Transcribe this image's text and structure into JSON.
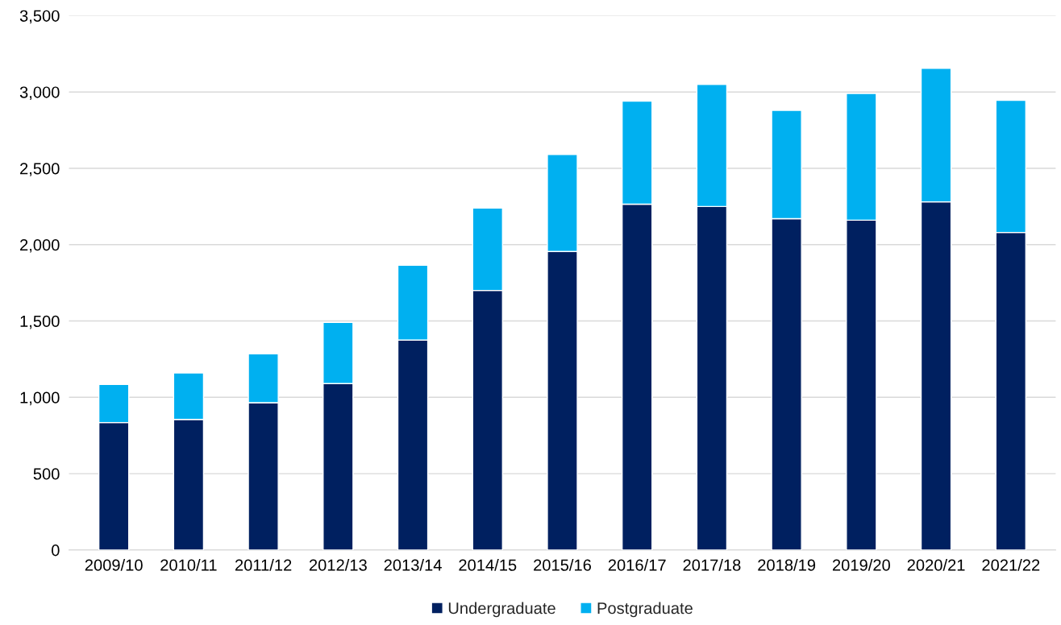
{
  "chart_data": {
    "type": "bar",
    "stacked": true,
    "categories": [
      "2009/10",
      "2010/11",
      "2011/12",
      "2012/13",
      "2013/14",
      "2014/15",
      "2015/16",
      "2016/17",
      "2017/18",
      "2018/19",
      "2019/20",
      "2020/21",
      "2021/22"
    ],
    "series": [
      {
        "name": "Undergraduate",
        "color": "#002060",
        "values": [
          835,
          855,
          965,
          1090,
          1375,
          1700,
          1955,
          2265,
          2250,
          2170,
          2160,
          2280,
          2080
        ]
      },
      {
        "name": "Postgraduate",
        "color": "#00b0f0",
        "values": [
          250,
          305,
          320,
          400,
          490,
          540,
          635,
          675,
          800,
          710,
          830,
          875,
          865
        ]
      }
    ],
    "ylim": [
      0,
      3500
    ],
    "yticks": [
      {
        "value": 0,
        "label": "0"
      },
      {
        "value": 500,
        "label": "500"
      },
      {
        "value": 1000,
        "label": "1,000"
      },
      {
        "value": 1500,
        "label": "1,500"
      },
      {
        "value": 2000,
        "label": "2,000"
      },
      {
        "value": 2500,
        "label": "2,500"
      },
      {
        "value": 3000,
        "label": "3,000"
      },
      {
        "value": 3500,
        "label": "3,500"
      }
    ],
    "grid": "y",
    "legend": "bottom"
  }
}
